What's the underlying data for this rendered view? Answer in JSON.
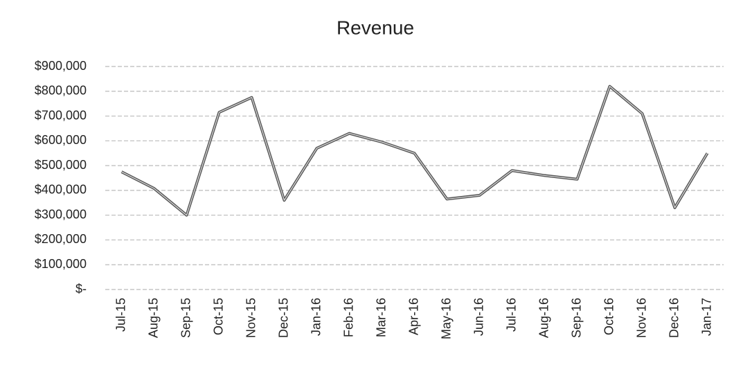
{
  "chart_data": {
    "type": "line",
    "title": "Revenue",
    "categories": [
      "Jul-15",
      "Aug-15",
      "Sep-15",
      "Oct-15",
      "Nov-15",
      "Dec-15",
      "Jan-16",
      "Feb-16",
      "Mar-16",
      "Apr-16",
      "May-16",
      "Jun-16",
      "Jul-16",
      "Aug-16",
      "Sep-16",
      "Oct-16",
      "Nov-16",
      "Dec-16",
      "Jan-17"
    ],
    "series": [
      {
        "name": "Revenue",
        "color": "#555555",
        "values": [
          475000,
          408000,
          300000,
          715000,
          775000,
          360000,
          570000,
          630000,
          595000,
          550000,
          365000,
          380000,
          480000,
          460000,
          445000,
          820000,
          710000,
          330000,
          550000
        ]
      }
    ],
    "ylim": [
      0,
      900000
    ],
    "yticks": [
      {
        "value": 0,
        "label": "$-"
      },
      {
        "value": 100000,
        "label": "$100,000"
      },
      {
        "value": 200000,
        "label": "$200,000"
      },
      {
        "value": 300000,
        "label": "$300,000"
      },
      {
        "value": 400000,
        "label": "$400,000"
      },
      {
        "value": 500000,
        "label": "$500,000"
      },
      {
        "value": 600000,
        "label": "$600,000"
      },
      {
        "value": 700000,
        "label": "$700,000"
      },
      {
        "value": 800000,
        "label": "$800,000"
      },
      {
        "value": 900000,
        "label": "$900,000"
      }
    ],
    "grid": true
  }
}
